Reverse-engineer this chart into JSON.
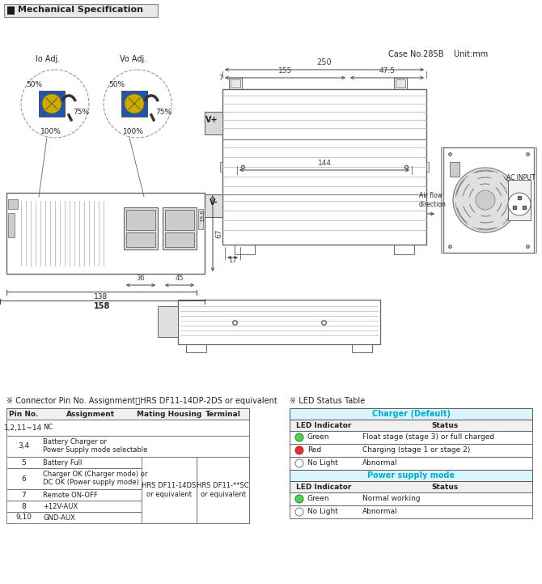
{
  "title": "Mechanical Specification",
  "case_info": "Case No.285B    Unit:mm",
  "connector_title": "※ Connector Pin No. Assignment：HRS DF11-14DP-2DS or equivalent",
  "led_title": "※ LED Status Table",
  "connector_headers": [
    "Pin No.",
    "Assignment",
    "Mating Housing",
    "Terminal"
  ],
  "connector_rows": [
    [
      "1,2,11~14",
      "NC"
    ],
    [
      "3,4",
      "Battery Charger or\nPower Supply mode selectable"
    ],
    [
      "5",
      "Battery Full"
    ],
    [
      "6",
      "Charger OK (Charger mode) or\nDC OK (Power supply mode)"
    ],
    [
      "7",
      "Remote ON-OFF"
    ],
    [
      "8",
      "+12V-AUX"
    ],
    [
      "9,10",
      "GND-AUX"
    ]
  ],
  "mating_housing": "HRS DF11-14DS\nor equivalent",
  "terminal": "HRS DF11-**SC\nor equivalent",
  "charger_table_header": "Charger (Default)",
  "power_table_header": "Power supply mode",
  "charger_led_rows": [
    [
      "green",
      "Green",
      "Float stage (stage 3) or full charged"
    ],
    [
      "red",
      "Red",
      "Charging (stage 1 or stage 2)"
    ],
    [
      "none",
      "No Light",
      "Abnormal"
    ]
  ],
  "power_led_rows": [
    [
      "green",
      "Green",
      "Normal working"
    ],
    [
      "none",
      "No Light",
      "Abnormal"
    ]
  ],
  "io_adj_label": "Io Adj.",
  "vo_adj_label": "Vo Adj.",
  "dim_250": "250",
  "dim_155": "155",
  "dim_47_5": "47.5",
  "dim_144": "144",
  "dim_67": "67",
  "dim_158": "158",
  "dim_138": "138",
  "dim_36": "36",
  "dim_45": "45",
  "dim_17": "17",
  "dim_19_6": "19.6",
  "vplus": "V+",
  "vminus": "V-",
  "air_flow": "Air flow\ndirection",
  "ac_input": "AC INPUT",
  "bg_color": "#ffffff",
  "border_color": "#666666",
  "text_color": "#222222",
  "dim_color": "#444444",
  "light_line": "#aaaaaa",
  "cyan_color": "#00AACC"
}
